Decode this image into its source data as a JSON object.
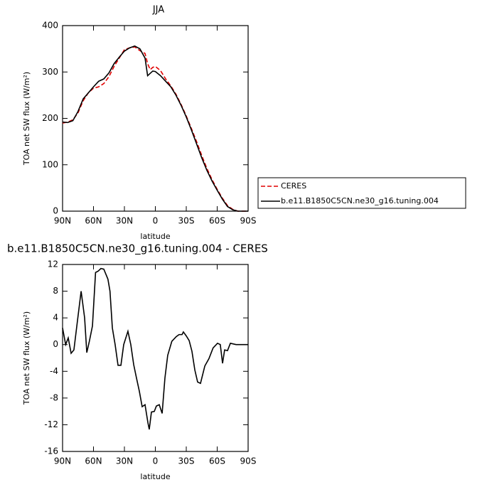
{
  "chart_data": [
    {
      "type": "line",
      "title": "JJA",
      "xlabel": "latitude",
      "ylabel": "TOA net SW flux (W/m²)",
      "x": [
        90,
        85,
        80,
        75,
        70,
        65,
        60,
        55,
        50,
        45,
        40,
        35,
        30,
        25,
        20,
        15,
        10,
        7.5,
        5,
        2.5,
        0,
        -5,
        -10,
        -15,
        -20,
        -25,
        -30,
        -35,
        -40,
        -45,
        -50,
        -55,
        -60,
        -65,
        -70,
        -75,
        -80,
        -85,
        -90
      ],
      "series": [
        {
          "name": "CERES",
          "color": "#e00000",
          "dash": true,
          "values": [
            190,
            192,
            197,
            212,
            238,
            255,
            265,
            268,
            275,
            290,
            312,
            330,
            348,
            352,
            354,
            346,
            340,
            318,
            305,
            310,
            312,
            303,
            285,
            270,
            252,
            230,
            205,
            178,
            150,
            120,
            92,
            68,
            47,
            28,
            12,
            4,
            0,
            0,
            0
          ]
        },
        {
          "name": "b.e11.B1850C5CN.ne30_g16.tuning.004",
          "color": "#000000",
          "dash": false,
          "values": [
            192,
            191,
            195,
            215,
            242,
            255,
            268,
            280,
            285,
            298,
            318,
            332,
            345,
            352,
            356,
            350,
            330,
            292,
            297,
            302,
            301,
            292,
            280,
            268,
            250,
            228,
            203,
            175,
            145,
            115,
            88,
            65,
            45,
            26,
            10,
            3,
            0,
            0,
            0
          ]
        }
      ],
      "xlim": [
        90,
        -90
      ],
      "xticks": [
        {
          "value": 90,
          "label": "90N"
        },
        {
          "value": 60,
          "label": "60N"
        },
        {
          "value": 30,
          "label": "30N"
        },
        0,
        {
          "value": -30,
          "label": "30S"
        },
        {
          "value": -60,
          "label": "60S"
        },
        {
          "value": -90,
          "label": "90S"
        }
      ],
      "ylim": [
        0,
        400
      ],
      "yticks": [
        0,
        100,
        200,
        300,
        400
      ],
      "legend": "right"
    },
    {
      "type": "line",
      "title": "b.e11.B1850C5CN.ne30_g16.tuning.004 - CERES",
      "xlabel": "latitude",
      "ylabel": "TOA net SW flux (W/m²)",
      "x": [
        90,
        87,
        84.5,
        81.7,
        79,
        76,
        72,
        68.6,
        66.5,
        64,
        61,
        58,
        55.5,
        52.8,
        50,
        46,
        44,
        41.7,
        39,
        36.2,
        33.4,
        30.7,
        26.6,
        23.8,
        21,
        18.3,
        15.5,
        12.8,
        10,
        7.2,
        5.9,
        3.8,
        1,
        -1,
        -3.8,
        -6.6,
        -9.3,
        -12,
        -16,
        -20.3,
        -23,
        -25.9,
        -27.2,
        -30,
        -32.8,
        -35.5,
        -38.3,
        -41,
        -43.8,
        -48,
        -52,
        -56,
        -60.3,
        -63,
        -65.2,
        -67.2,
        -70,
        -72.8,
        -78.3,
        -83.8,
        -90
      ],
      "series": [
        {
          "name": "b.e11.B1850C5CN.ne30_g16.tuning.004 - CERES",
          "color": "#000000",
          "dash": false,
          "values": [
            2.5,
            0,
            1,
            -1.3,
            -0.8,
            3,
            8,
            4,
            -1.2,
            0.5,
            2.8,
            10.8,
            11,
            11.4,
            11.3,
            9.8,
            8,
            2.5,
            0,
            -3.1,
            -3.1,
            0,
            2,
            0,
            -3,
            -5,
            -7,
            -9.3,
            -9,
            -11.7,
            -12.7,
            -10.1,
            -10,
            -9.2,
            -9,
            -10.3,
            -5,
            -1.6,
            0.5,
            1.2,
            1.5,
            1.5,
            1.9,
            1.3,
            0.6,
            -1,
            -3.8,
            -5.6,
            -5.8,
            -3.2,
            -2.1,
            -0.5,
            0.2,
            0,
            -2.8,
            -0.8,
            -0.9,
            0.2,
            0,
            0,
            0
          ]
        }
      ],
      "xlim": [
        90,
        -90
      ],
      "xticks": [
        {
          "value": 90,
          "label": "90N"
        },
        {
          "value": 60,
          "label": "60N"
        },
        {
          "value": 30,
          "label": "30N"
        },
        0,
        {
          "value": -30,
          "label": "30S"
        },
        {
          "value": -60,
          "label": "60S"
        },
        {
          "value": -90,
          "label": "90S"
        }
      ],
      "ylim": [
        -16,
        12
      ],
      "yticks": [
        12,
        8,
        4,
        0,
        -4,
        -8,
        -12,
        -16
      ]
    }
  ]
}
